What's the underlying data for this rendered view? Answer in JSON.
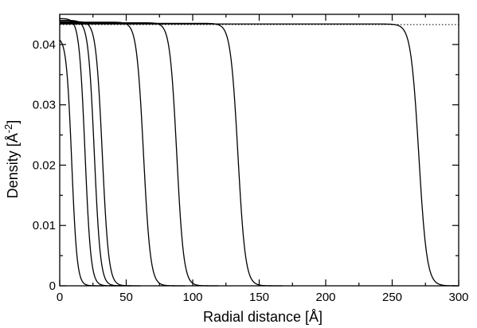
{
  "chart_data": {
    "type": "line",
    "xlabel": "Radial distance  [Å]",
    "ylabel": "Density  [Å",
    "ylabel_exponent": "-2",
    "ylabel_close": "]",
    "xlim": [
      0,
      300
    ],
    "ylim": [
      0,
      0.045
    ],
    "x_ticks": [
      0,
      50,
      100,
      150,
      200,
      250,
      300
    ],
    "x_tick_labels": [
      "0",
      "50",
      "100",
      "150",
      "200",
      "250",
      "300"
    ],
    "y_ticks": [
      0,
      0.01,
      0.02,
      0.03,
      0.04
    ],
    "y_tick_labels": [
      "0",
      "0.01",
      "0.02",
      "0.03",
      "0.04"
    ],
    "grid": false,
    "reference_line": {
      "y": 0.0433,
      "style": "dotted"
    },
    "series": [
      {
        "plateau": 0.0412,
        "edge": 9,
        "width": 2.0
      },
      {
        "plateau": 0.0443,
        "edge": 19,
        "width": 2.2
      },
      {
        "plateau": 0.044,
        "edge": 26,
        "width": 2.3
      },
      {
        "plateau": 0.0438,
        "edge": 32,
        "width": 2.4
      },
      {
        "plateau": 0.0437,
        "edge": 63,
        "width": 2.6
      },
      {
        "plateau": 0.0436,
        "edge": 88,
        "width": 2.6
      },
      {
        "plateau": 0.0435,
        "edge": 134,
        "width": 2.8
      },
      {
        "plateau": 0.0434,
        "edge": 270,
        "width": 3.0
      }
    ]
  }
}
